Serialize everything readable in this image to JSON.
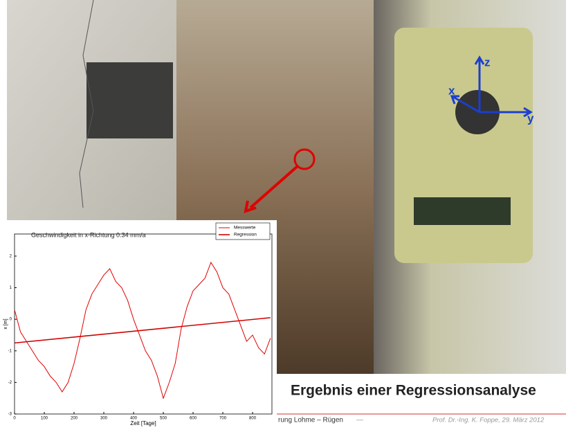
{
  "slide": {
    "title": "Ergebnis einer Regressionsanalyse",
    "footer_left": "rung Lohme – Rügen",
    "footer_dash": "—",
    "footer_right": "Prof. Dr.-Ing. K. Foppe, 29. März 2012",
    "axis_z": "z",
    "axis_x": "x",
    "axis_y": "y"
  },
  "chart_data": {
    "type": "line",
    "title": "Geschwindigkeit in x-Richtung 0.34 mm/a",
    "x_label": "Zeit [Tage]",
    "y_label": "x [m]",
    "x": [
      0,
      20,
      40,
      60,
      80,
      100,
      120,
      140,
      160,
      180,
      200,
      220,
      240,
      260,
      280,
      300,
      320,
      340,
      360,
      380,
      400,
      420,
      440,
      460,
      480,
      500,
      520,
      540,
      560,
      580,
      600,
      620,
      640,
      660,
      680,
      700,
      720,
      740,
      760,
      780,
      800,
      820,
      840,
      860
    ],
    "series": [
      {
        "name": "Messwerte",
        "color": "#e00000",
        "values": [
          0.3,
          -0.4,
          -0.7,
          -1.0,
          -1.3,
          -1.5,
          -1.8,
          -2.0,
          -2.3,
          -2.0,
          -1.4,
          -0.6,
          0.3,
          0.8,
          1.1,
          1.4,
          1.6,
          1.2,
          1.0,
          0.6,
          0.0,
          -0.5,
          -1.0,
          -1.3,
          -1.8,
          -2.5,
          -2.0,
          -1.4,
          -0.3,
          0.4,
          0.9,
          1.1,
          1.3,
          1.8,
          1.5,
          1.0,
          0.8,
          0.3,
          -0.2,
          -0.7,
          -0.5,
          -0.9,
          -1.1,
          -0.6
        ]
      },
      {
        "name": "Regression",
        "color": "#d00000",
        "x": [
          0,
          860
        ],
        "values": [
          -0.75,
          0.05
        ]
      }
    ],
    "xlim": [
      0,
      865
    ],
    "ylim": [
      -3,
      2.7
    ],
    "xticks": [
      0,
      100,
      200,
      300,
      400,
      500,
      600,
      700,
      800
    ],
    "yticks": [
      -3,
      -2,
      -1,
      0,
      1,
      2
    ]
  }
}
